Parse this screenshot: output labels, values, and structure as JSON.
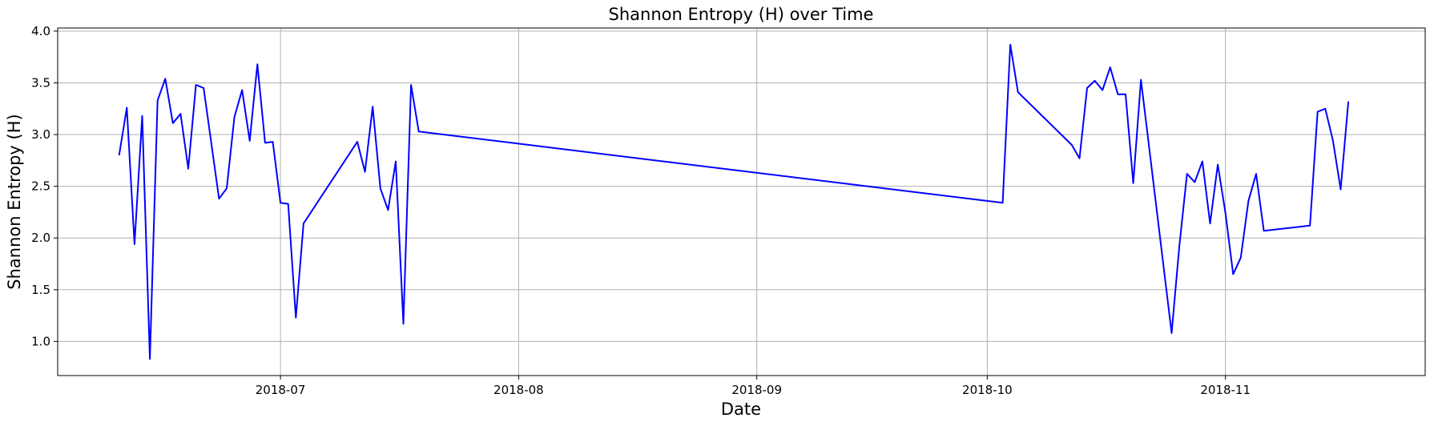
{
  "chart_data": {
    "type": "line",
    "title": "Shannon Entropy (H) over Time",
    "xlabel": "Date",
    "ylabel": "Shannon Entropy (H)",
    "x_axis_type": "date",
    "xlim": [
      "2018-06-02",
      "2018-11-27"
    ],
    "ylim": [
      0.67,
      4.03
    ],
    "grid": true,
    "line_color": "#0000ff",
    "x_ticks": [
      "2018-07",
      "2018-08",
      "2018-09",
      "2018-10",
      "2018-11"
    ],
    "y_ticks": [
      "1.0",
      "1.5",
      "2.0",
      "2.5",
      "3.0",
      "3.5",
      "4.0"
    ],
    "series": [
      {
        "points": [
          [
            "2018-06-10",
            2.8
          ],
          [
            "2018-06-11",
            3.26
          ],
          [
            "2018-06-12",
            1.94
          ],
          [
            "2018-06-13",
            3.18
          ],
          [
            "2018-06-14",
            0.83
          ],
          [
            "2018-06-15",
            3.33
          ],
          [
            "2018-06-16",
            3.54
          ],
          [
            "2018-06-17",
            3.11
          ],
          [
            "2018-06-18",
            3.2
          ],
          [
            "2018-06-19",
            2.67
          ],
          [
            "2018-06-20",
            3.48
          ],
          [
            "2018-06-21",
            3.45
          ],
          [
            "2018-06-23",
            2.38
          ],
          [
            "2018-06-24",
            2.48
          ],
          [
            "2018-06-25",
            3.17
          ],
          [
            "2018-06-26",
            3.43
          ],
          [
            "2018-06-27",
            2.94
          ],
          [
            "2018-06-28",
            3.68
          ],
          [
            "2018-06-29",
            2.92
          ],
          [
            "2018-06-30",
            2.93
          ],
          [
            "2018-07-01",
            2.34
          ],
          [
            "2018-07-02",
            2.33
          ],
          [
            "2018-07-03",
            1.23
          ],
          [
            "2018-07-04",
            2.14
          ],
          [
            "2018-07-11",
            2.93
          ],
          [
            "2018-07-12",
            2.64
          ],
          [
            "2018-07-13",
            3.27
          ],
          [
            "2018-07-14",
            2.48
          ],
          [
            "2018-07-15",
            2.27
          ],
          [
            "2018-07-16",
            2.74
          ],
          [
            "2018-07-17",
            1.17
          ],
          [
            "2018-07-18",
            3.48
          ],
          [
            "2018-07-19",
            3.03
          ],
          [
            "2018-10-03",
            2.34
          ],
          [
            "2018-10-04",
            3.87
          ],
          [
            "2018-10-05",
            3.41
          ],
          [
            "2018-10-12",
            2.9
          ],
          [
            "2018-10-13",
            2.77
          ],
          [
            "2018-10-14",
            3.45
          ],
          [
            "2018-10-15",
            3.52
          ],
          [
            "2018-10-16",
            3.43
          ],
          [
            "2018-10-17",
            3.65
          ],
          [
            "2018-10-18",
            3.39
          ],
          [
            "2018-10-19",
            3.39
          ],
          [
            "2018-10-20",
            2.53
          ],
          [
            "2018-10-21",
            3.53
          ],
          [
            "2018-10-25",
            1.08
          ],
          [
            "2018-10-26",
            1.92
          ],
          [
            "2018-10-27",
            2.62
          ],
          [
            "2018-10-28",
            2.54
          ],
          [
            "2018-10-29",
            2.74
          ],
          [
            "2018-10-30",
            2.14
          ],
          [
            "2018-10-31",
            2.71
          ],
          [
            "2018-11-01",
            2.24
          ],
          [
            "2018-11-02",
            1.65
          ],
          [
            "2018-11-03",
            1.81
          ],
          [
            "2018-11-04",
            2.36
          ],
          [
            "2018-11-05",
            2.62
          ],
          [
            "2018-11-06",
            2.07
          ],
          [
            "2018-11-12",
            2.12
          ],
          [
            "2018-11-13",
            3.22
          ],
          [
            "2018-11-14",
            3.25
          ],
          [
            "2018-11-15",
            2.94
          ],
          [
            "2018-11-16",
            2.47
          ],
          [
            "2018-11-17",
            3.32
          ]
        ]
      }
    ]
  }
}
